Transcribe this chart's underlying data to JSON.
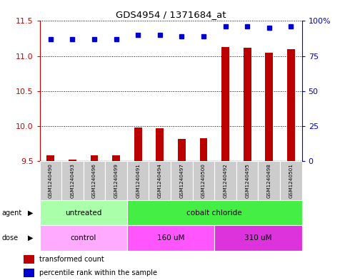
{
  "title": "GDS4954 / 1371684_at",
  "samples": [
    "GSM1240490",
    "GSM1240493",
    "GSM1240496",
    "GSM1240499",
    "GSM1240491",
    "GSM1240494",
    "GSM1240497",
    "GSM1240500",
    "GSM1240492",
    "GSM1240495",
    "GSM1240498",
    "GSM1240501"
  ],
  "transformed_count": [
    9.58,
    9.52,
    9.58,
    9.58,
    9.98,
    9.97,
    9.82,
    9.83,
    11.13,
    11.12,
    11.05,
    11.1
  ],
  "percentile_rank": [
    87,
    87,
    87,
    87,
    90,
    90,
    89,
    89,
    96,
    96,
    95,
    96
  ],
  "ylim_left": [
    9.5,
    11.5
  ],
  "ylim_right": [
    0,
    100
  ],
  "yticks_left": [
    9.5,
    10.0,
    10.5,
    11.0,
    11.5
  ],
  "yticks_right": [
    0,
    25,
    50,
    75,
    100
  ],
  "bar_color": "#bb0000",
  "dot_color": "#0000cc",
  "bar_bottom": 9.5,
  "bar_width": 0.35,
  "agent_groups": [
    {
      "label": "untreated",
      "start": 0,
      "end": 4,
      "color": "#aaffaa"
    },
    {
      "label": "cobalt chloride",
      "start": 4,
      "end": 12,
      "color": "#44ee44"
    }
  ],
  "dose_groups": [
    {
      "label": "control",
      "start": 0,
      "end": 4,
      "color": "#ffaaff"
    },
    {
      "label": "160 uM",
      "start": 4,
      "end": 8,
      "color": "#ff55ff"
    },
    {
      "label": "310 uM",
      "start": 8,
      "end": 12,
      "color": "#dd33dd"
    }
  ],
  "legend_bar_color": "#bb0000",
  "legend_dot_color": "#0000cc",
  "legend_bar_label": "transformed count",
  "legend_dot_label": "percentile rank within the sample",
  "sample_box_color": "#cccccc",
  "left_axis_color": "#cc0000",
  "right_axis_color": "#0000cc",
  "main_axes": [
    0.115,
    0.425,
    0.76,
    0.5
  ],
  "samples_axes": [
    0.115,
    0.285,
    0.76,
    0.14
  ],
  "agent_axes": [
    0.115,
    0.195,
    0.76,
    0.09
  ],
  "dose_axes": [
    0.115,
    0.105,
    0.76,
    0.09
  ],
  "legend_axes": [
    0.05,
    0.0,
    0.9,
    0.1
  ]
}
